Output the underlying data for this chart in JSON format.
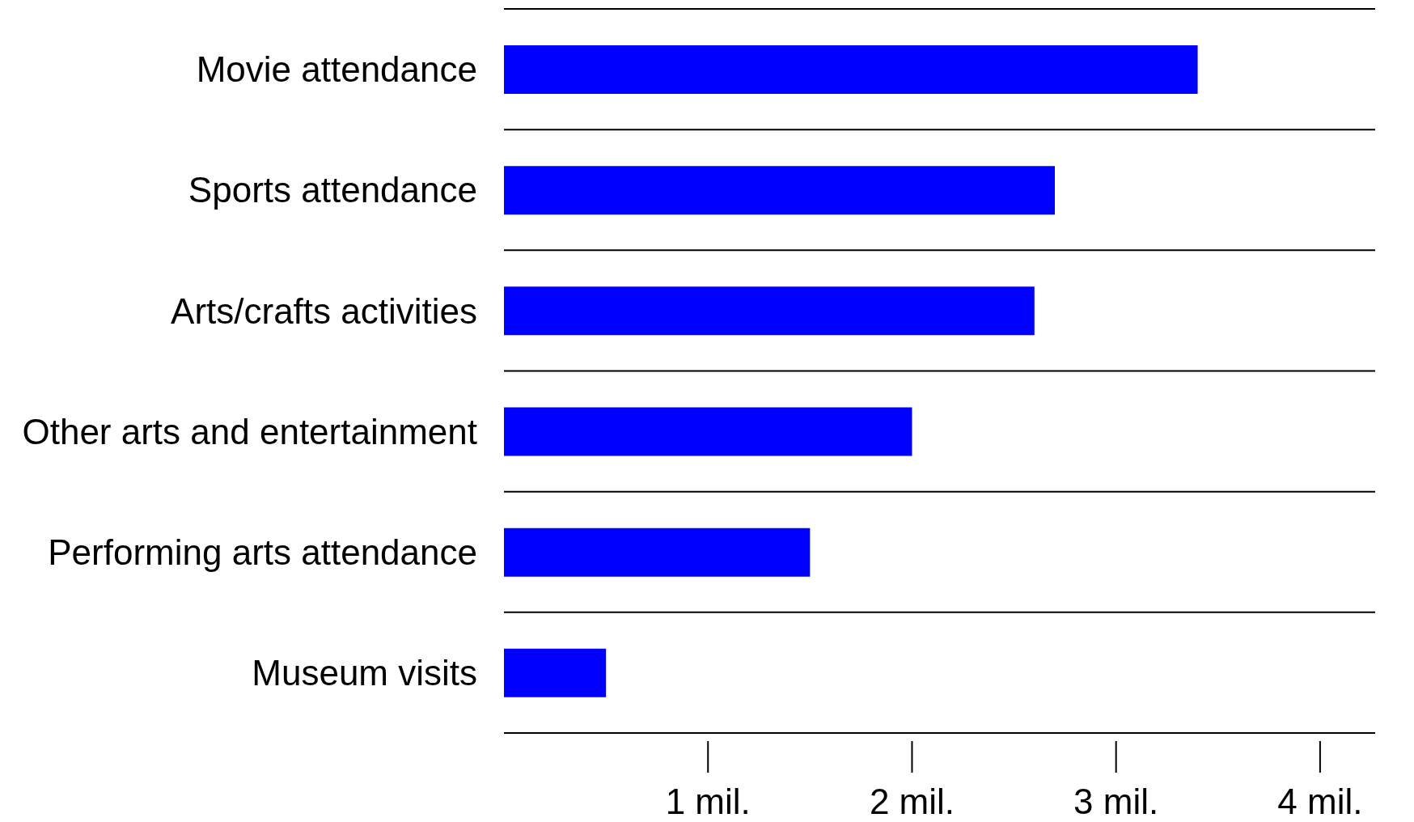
{
  "chart_data": {
    "type": "bar",
    "orientation": "horizontal",
    "categories": [
      "Movie attendance",
      "Sports attendance",
      "Arts/crafts activities",
      "Other arts and entertainment",
      "Performing arts attendance",
      "Museum visits"
    ],
    "values": [
      3.4,
      2.7,
      2.6,
      2.0,
      1.5,
      0.5
    ],
    "color": "#0000ff",
    "xlim": [
      0,
      4.27
    ],
    "xticks": [
      {
        "value": 1,
        "label": "1 mil."
      },
      {
        "value": 2,
        "label": "2 mil."
      },
      {
        "value": 3,
        "label": "3 mil."
      },
      {
        "value": 4,
        "label": "4 mil."
      }
    ],
    "grid": "y"
  }
}
